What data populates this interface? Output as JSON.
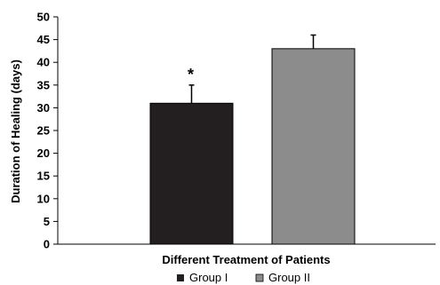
{
  "chart_data": {
    "type": "bar",
    "categories": [
      "Group I",
      "Group II"
    ],
    "values": [
      31,
      43
    ],
    "errors": [
      4,
      3
    ],
    "colors": [
      "#231f20",
      "#8c8c8c"
    ],
    "xlabel": "Different Treatment of Patients",
    "ylabel": "Duration of Healing (days)",
    "ylim": [
      0,
      50
    ],
    "yticks": [
      0,
      5,
      10,
      15,
      20,
      25,
      30,
      35,
      40,
      45,
      50
    ],
    "annotations": [
      {
        "category": "Group I",
        "text": "*"
      }
    ],
    "legend": {
      "placement": "bottom",
      "entries": [
        {
          "label": "Group I",
          "color": "#231f20"
        },
        {
          "label": "Group II",
          "color": "#8c8c8c"
        }
      ]
    },
    "grid": false
  }
}
